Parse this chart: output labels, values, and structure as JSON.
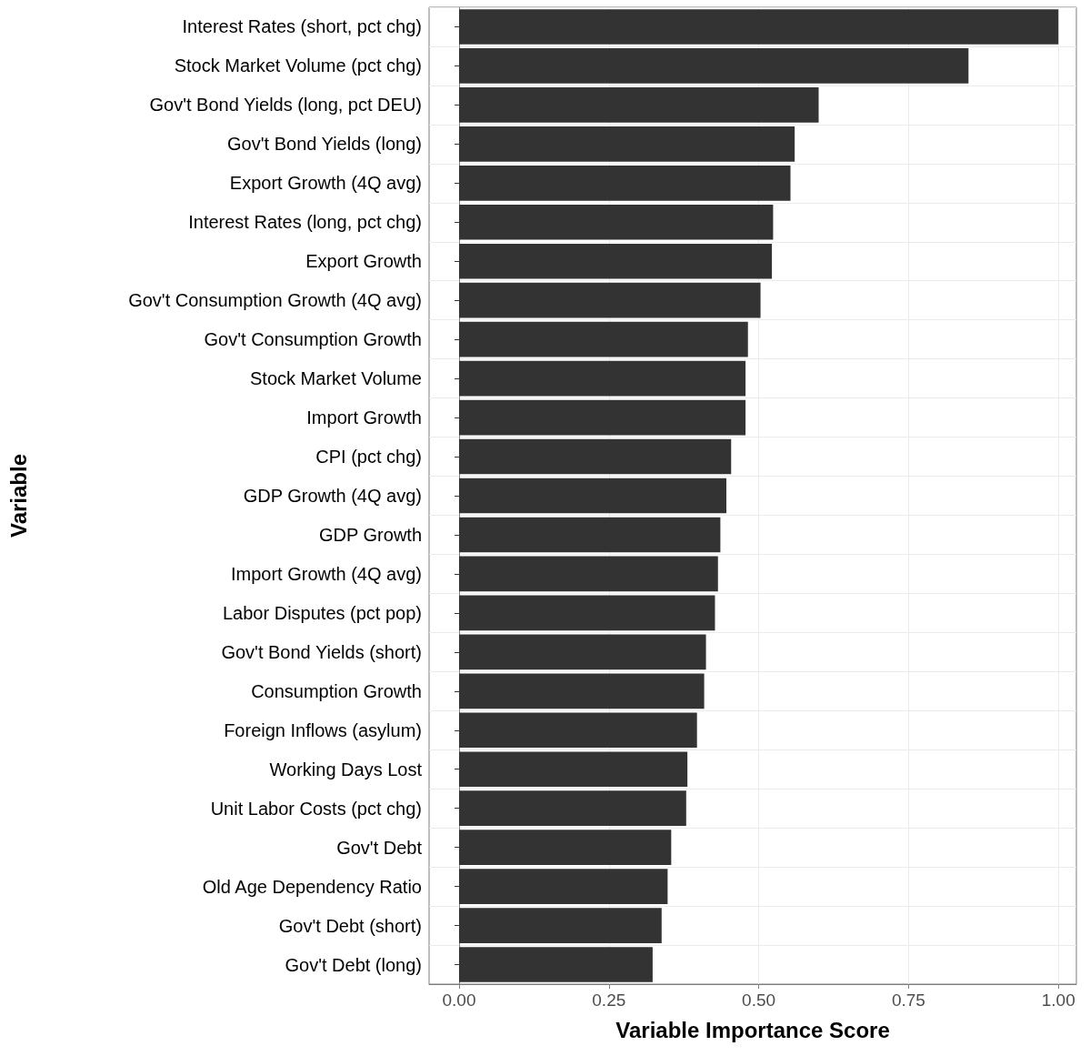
{
  "chart_data": {
    "type": "bar",
    "orientation": "horizontal",
    "xlabel": "Variable Importance Score",
    "ylabel": "Variable",
    "categories": [
      "Interest Rates (short, pct chg)",
      "Stock Market Volume (pct chg)",
      "Gov't Bond Yields (long, pct DEU)",
      "Gov't Bond Yields (long)",
      "Export Growth (4Q avg)",
      "Interest Rates (long, pct chg)",
      "Export Growth",
      "Gov't Consumption Growth (4Q avg)",
      "Gov't Consumption Growth",
      "Stock Market Volume",
      "Import Growth",
      "CPI (pct chg)",
      "GDP Growth (4Q avg)",
      "GDP Growth",
      "Import Growth (4Q avg)",
      "Labor Disputes (pct pop)",
      "Gov't Bond Yields (short)",
      "Consumption Growth",
      "Foreign Inflows (asylum)",
      "Working Days Lost",
      "Unit Labor Costs (pct chg)",
      "Gov't Debt",
      "Old Age Dependency Ratio",
      "Gov't Debt (short)",
      "Gov't Debt (long)"
    ],
    "values": [
      1.0,
      0.85,
      0.6,
      0.56,
      0.553,
      0.524,
      0.522,
      0.503,
      0.482,
      0.478,
      0.478,
      0.454,
      0.446,
      0.436,
      0.432,
      0.427,
      0.412,
      0.409,
      0.397,
      0.381,
      0.379,
      0.354,
      0.348,
      0.338,
      0.323
    ],
    "color": "#333333",
    "xlim": [
      -0.05,
      1.03
    ],
    "xticks": [
      {
        "value": 0,
        "label": "0.00"
      },
      {
        "value": 0.25,
        "label": "0.25"
      },
      {
        "value": 0.5,
        "label": "0.50"
      },
      {
        "value": 0.75,
        "label": "0.75"
      },
      {
        "value": 1,
        "label": "1.00"
      }
    ],
    "grid": true
  }
}
